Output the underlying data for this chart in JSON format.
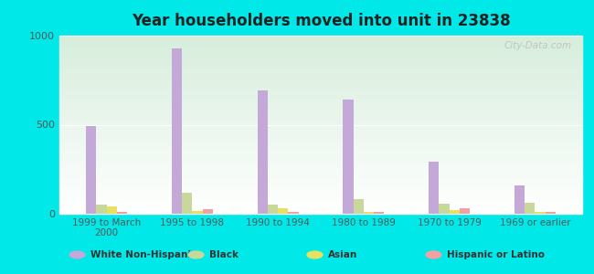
{
  "title": "Year householders moved into unit in 23838",
  "categories": [
    "1999 to March\n2000",
    "1995 to 1998",
    "1990 to 1994",
    "1980 to 1989",
    "1970 to 1979",
    "1969 or earlier"
  ],
  "white": [
    490,
    930,
    690,
    640,
    290,
    160
  ],
  "black": [
    50,
    120,
    50,
    80,
    55,
    60
  ],
  "asian": [
    40,
    15,
    30,
    10,
    20,
    10
  ],
  "hispanic": [
    10,
    25,
    10,
    10,
    30,
    10
  ],
  "white_color": "#c4a8d8",
  "black_color": "#c8d89a",
  "asian_color": "#e8e060",
  "hispanic_color": "#f4a0a0",
  "bg_color": "#00e8e8",
  "ylim": [
    0,
    1000
  ],
  "yticks": [
    0,
    500,
    1000
  ],
  "bar_width": 0.12,
  "watermark": "City-Data.com"
}
